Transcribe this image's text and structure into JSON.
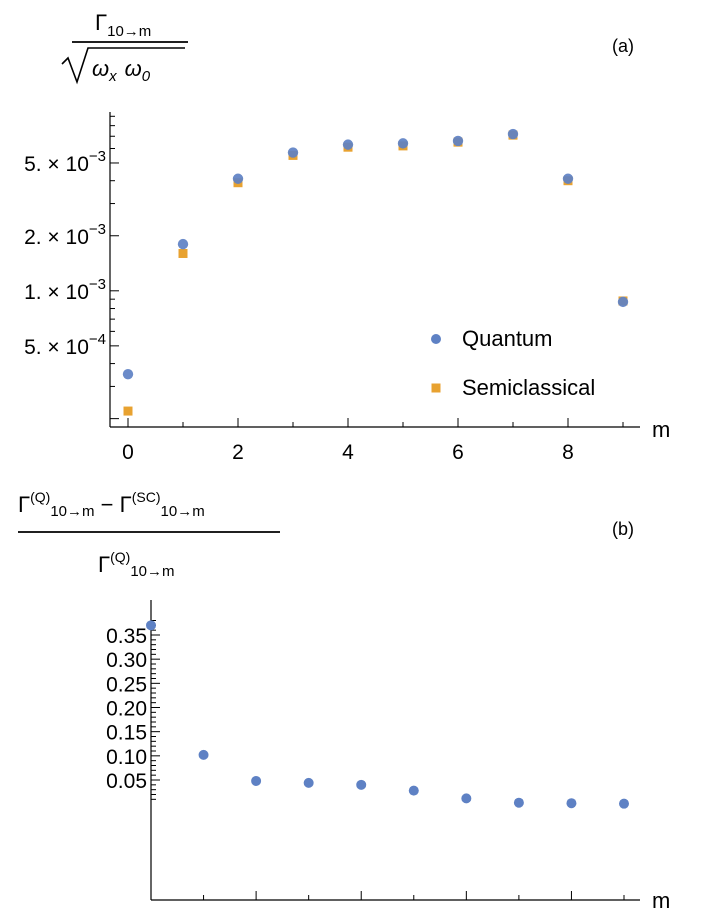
{
  "chart_data": [
    {
      "panel": "(a)",
      "type": "scatter",
      "ylabel_num": "Γ",
      "ylabel_num_sub": "10→m",
      "ylabel_den_a": "ω",
      "ylabel_den_a_sub": "x",
      "ylabel_den_b": "ω",
      "ylabel_den_b_sub": "0",
      "xlabel": "m",
      "yscale": "log",
      "xlim": [
        -0.2,
        9.2
      ],
      "ylim": [
        0.00018,
        0.0095
      ],
      "x_ticks": [
        0,
        2,
        4,
        6,
        8
      ],
      "y_tick_labels": [
        {
          "value": 0.005,
          "mant": "5. × 10",
          "exp": "−3"
        },
        {
          "value": 0.002,
          "mant": "2. × 10",
          "exp": "−3"
        },
        {
          "value": 0.001,
          "mant": "1. × 10",
          "exp": "−3"
        },
        {
          "value": 0.0005,
          "mant": "5. × 10",
          "exp": "−4"
        }
      ],
      "legend_position": "bottom-right",
      "series": [
        {
          "name": "Quantum",
          "marker": "circle",
          "color": "#5e81c4",
          "x": [
            0,
            1,
            2,
            3,
            4,
            5,
            6,
            7,
            8,
            9
          ],
          "y": [
            0.00035,
            0.0018,
            0.0041,
            0.0057,
            0.0063,
            0.0064,
            0.0066,
            0.0072,
            0.0041,
            0.00087
          ]
        },
        {
          "name": "Semiclassical",
          "marker": "square",
          "color": "#e8a230",
          "x": [
            0,
            1,
            2,
            3,
            4,
            5,
            6,
            7,
            8,
            9
          ],
          "y": [
            0.00022,
            0.0016,
            0.0039,
            0.0055,
            0.0061,
            0.0062,
            0.0065,
            0.0071,
            0.004,
            0.00088
          ]
        }
      ]
    },
    {
      "panel": "(b)",
      "type": "scatter",
      "ylabel_t1": "Γ",
      "ylabel_t1_sup": "(Q)",
      "ylabel_t1_sub": "10→m",
      "ylabel_minus": " − ",
      "ylabel_t2": "Γ",
      "ylabel_t2_sup": "(SC)",
      "ylabel_t2_sub": "10→m",
      "ylabel_den": "Γ",
      "ylabel_den_sup": "(Q)",
      "ylabel_den_sub": "10→m",
      "xlabel": "m",
      "yscale": "linear",
      "xlim": [
        -0.2,
        9.2
      ],
      "ylim": [
        0,
        0.38
      ],
      "x_ticks": [
        0,
        2,
        4,
        6,
        8
      ],
      "y_ticks": [
        0.05,
        0.1,
        0.15,
        0.2,
        0.25,
        0.3,
        0.35
      ],
      "y_tick_labels": [
        "0.05",
        "0.10",
        "0.15",
        "0.20",
        "0.25",
        "0.30",
        "0.35"
      ],
      "series": [
        {
          "color": "#5e81c4",
          "marker": "circle",
          "x": [
            0,
            1,
            2,
            3,
            4,
            5,
            6,
            7,
            8,
            9
          ],
          "y": [
            0.37,
            0.102,
            0.048,
            0.044,
            0.04,
            0.028,
            0.012,
            0.003,
            0.002,
            0.001
          ]
        }
      ]
    }
  ]
}
